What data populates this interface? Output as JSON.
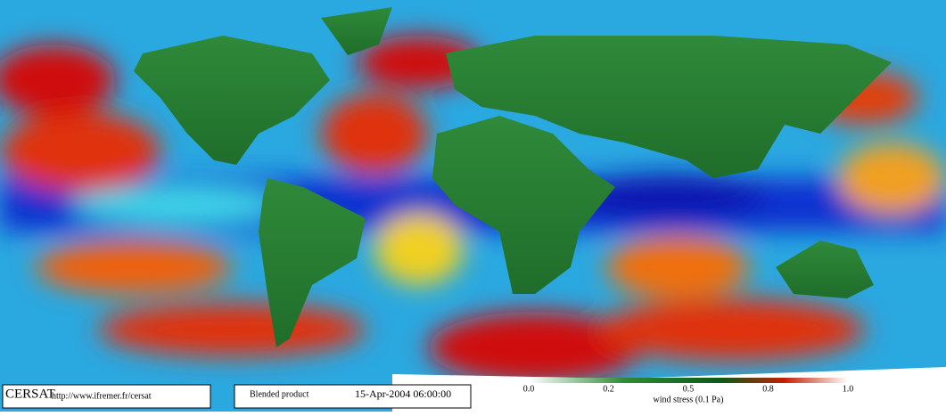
{
  "header": {
    "logo": "CERSAT",
    "url": "http://www.ifremer.fr/cersat"
  },
  "product": {
    "name": "Blended product",
    "date": "15-Apr-2004 06:00:00"
  },
  "colorbar": {
    "ticks": [
      "0.0",
      "0.2",
      "0.5",
      "0.8",
      "1.0"
    ],
    "label": "wind stress (0.1 Pa)"
  }
}
